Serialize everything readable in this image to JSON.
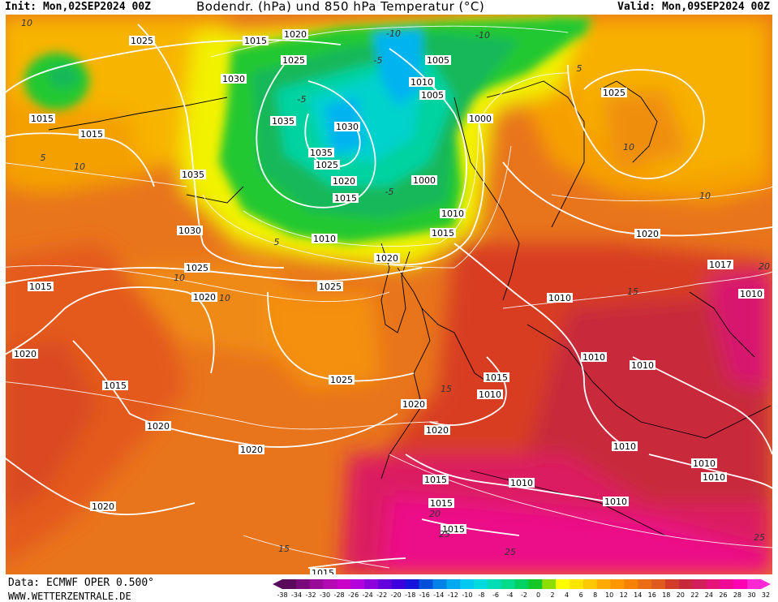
{
  "header": {
    "init_text": "Init: Mon,02SEP2024 00Z",
    "title": "Bodendr. (hPa) und 850 hPa Temperatur (°C)",
    "valid_text": "Valid: Mon,09SEP2024 00Z"
  },
  "footer": {
    "data_source": "Data: ECMWF OPER 0.500°",
    "website": "WWW.WETTERZENTRALE.DE"
  },
  "colorbar": {
    "ticks": [
      "-38",
      "-34",
      "-32",
      "-30",
      "-28",
      "-26",
      "-24",
      "-22",
      "-20",
      "-18",
      "-16",
      "-14",
      "-12",
      "-10",
      "-8",
      "-6",
      "-4",
      "-2",
      "0",
      "2",
      "4",
      "6",
      "8",
      "10",
      "12",
      "14",
      "16",
      "18",
      "20",
      "22",
      "24",
      "26",
      "28",
      "30",
      "32"
    ],
    "colors": [
      "#5a0a5a",
      "#7a0a7a",
      "#9a0a9a",
      "#b40ab4",
      "#c800c8",
      "#b400dc",
      "#8c00dc",
      "#6400dc",
      "#3c00dc",
      "#1414dc",
      "#0050dc",
      "#0082e6",
      "#00aaf0",
      "#00c8f0",
      "#00dcdc",
      "#00dcb4",
      "#00dc8c",
      "#00d264",
      "#14c828",
      "#8cdc00",
      "#ffff00",
      "#ffe600",
      "#ffc800",
      "#ffaa00",
      "#ff9600",
      "#f58200",
      "#eb6e14",
      "#e15a1e",
      "#d23c28",
      "#c8283c",
      "#d21e5a",
      "#e61478",
      "#f00a96",
      "#ff00b4",
      "#ff28d2"
    ]
  },
  "isobar_labels": [
    {
      "text": "1025",
      "xp": 175,
      "yp": 50
    },
    {
      "text": "1020",
      "xp": 364,
      "yp": 42
    },
    {
      "text": "1015",
      "xp": 315,
      "yp": 50
    },
    {
      "text": "1025",
      "xp": 362,
      "yp": 74
    },
    {
      "text": "1030",
      "xp": 288,
      "yp": 97
    },
    {
      "text": "1005",
      "xp": 540,
      "yp": 74
    },
    {
      "text": "1010",
      "xp": 520,
      "yp": 101
    },
    {
      "text": "1005",
      "xp": 533,
      "yp": 117
    },
    {
      "text": "1025",
      "xp": 757,
      "yp": 114
    },
    {
      "text": "1015",
      "xp": 52,
      "yp": 146
    },
    {
      "text": "1015",
      "xp": 113,
      "yp": 165
    },
    {
      "text": "1035",
      "xp": 349,
      "yp": 149
    },
    {
      "text": "1030",
      "xp": 428,
      "yp": 156
    },
    {
      "text": "1000",
      "xp": 592,
      "yp": 146
    },
    {
      "text": "1035",
      "xp": 396,
      "yp": 188
    },
    {
      "text": "1025",
      "xp": 403,
      "yp": 203
    },
    {
      "text": "1035",
      "xp": 238,
      "yp": 215
    },
    {
      "text": "1020",
      "xp": 424,
      "yp": 223
    },
    {
      "text": "1000",
      "xp": 523,
      "yp": 222
    },
    {
      "text": "1015",
      "xp": 426,
      "yp": 244
    },
    {
      "text": "1010",
      "xp": 558,
      "yp": 263
    },
    {
      "text": "1030",
      "xp": 234,
      "yp": 284
    },
    {
      "text": "1015",
      "xp": 546,
      "yp": 287
    },
    {
      "text": "1010",
      "xp": 400,
      "yp": 294
    },
    {
      "text": "1020",
      "xp": 798,
      "yp": 288
    },
    {
      "text": "1020",
      "xp": 477,
      "yp": 318
    },
    {
      "text": "1025",
      "xp": 243,
      "yp": 330
    },
    {
      "text": "1017",
      "xp": 888,
      "yp": 326
    },
    {
      "text": "1015",
      "xp": 50,
      "yp": 353
    },
    {
      "text": "1025",
      "xp": 407,
      "yp": 353
    },
    {
      "text": "1020",
      "xp": 252,
      "yp": 366
    },
    {
      "text": "1010",
      "xp": 690,
      "yp": 367
    },
    {
      "text": "1010",
      "xp": 926,
      "yp": 362
    },
    {
      "text": "1020",
      "xp": 31,
      "yp": 436
    },
    {
      "text": "1010",
      "xp": 732,
      "yp": 440
    },
    {
      "text": "1010",
      "xp": 792,
      "yp": 450
    },
    {
      "text": "1015",
      "xp": 612,
      "yp": 465
    },
    {
      "text": "1025",
      "xp": 421,
      "yp": 468
    },
    {
      "text": "1015",
      "xp": 142,
      "yp": 475
    },
    {
      "text": "1010",
      "xp": 604,
      "yp": 486
    },
    {
      "text": "1020",
      "xp": 510,
      "yp": 498
    },
    {
      "text": "1020",
      "xp": 195,
      "yp": 525
    },
    {
      "text": "1020",
      "xp": 539,
      "yp": 530
    },
    {
      "text": "1010",
      "xp": 770,
      "yp": 550
    },
    {
      "text": "1020",
      "xp": 310,
      "yp": 554
    },
    {
      "text": "1010",
      "xp": 868,
      "yp": 571
    },
    {
      "text": "1010",
      "xp": 880,
      "yp": 588
    },
    {
      "text": "1015",
      "xp": 537,
      "yp": 591
    },
    {
      "text": "1010",
      "xp": 643,
      "yp": 595
    },
    {
      "text": "1010",
      "xp": 759,
      "yp": 618
    },
    {
      "text": "1020",
      "xp": 127,
      "yp": 624
    },
    {
      "text": "1015",
      "xp": 544,
      "yp": 620
    },
    {
      "text": "1015",
      "xp": 559,
      "yp": 652
    },
    {
      "text": "1015",
      "xp": 398,
      "yp": 706
    }
  ],
  "temp_labels": [
    {
      "text": "-10",
      "xp": 485,
      "yp": 45
    },
    {
      "text": "-10",
      "xp": 595,
      "yp": 47
    },
    {
      "text": "-5",
      "xp": 466,
      "yp": 78
    },
    {
      "text": "-5",
      "xp": 372,
      "yp": 126
    },
    {
      "text": "-5",
      "xp": 480,
      "yp": 240
    },
    {
      "text": "5",
      "xp": 714,
      "yp": 88
    },
    {
      "text": "5",
      "xp": 440,
      "yp": 18
    },
    {
      "text": "10",
      "xp": 33,
      "yp": 32
    },
    {
      "text": "10",
      "xp": 775,
      "yp": 185
    },
    {
      "text": "10",
      "xp": 98,
      "yp": 209
    },
    {
      "text": "10",
      "xp": 869,
      "yp": 245
    },
    {
      "text": "5",
      "xp": 53,
      "yp": 198
    },
    {
      "text": "5",
      "xp": 341,
      "yp": 302
    },
    {
      "text": "15",
      "xp": 780,
      "yp": 363
    },
    {
      "text": "10",
      "xp": 221,
      "yp": 346
    },
    {
      "text": "10",
      "xp": 277,
      "yp": 371
    },
    {
      "text": "20",
      "xp": 942,
      "yp": 332
    },
    {
      "text": "15",
      "xp": 550,
      "yp": 483
    },
    {
      "text": "15",
      "xp": 350,
      "yp": 680
    },
    {
      "text": "20",
      "xp": 536,
      "yp": 637
    },
    {
      "text": "25",
      "xp": 548,
      "yp": 662
    },
    {
      "text": "25",
      "xp": 629,
      "yp": 684
    },
    {
      "text": "25",
      "xp": 936,
      "yp": 666
    }
  ]
}
